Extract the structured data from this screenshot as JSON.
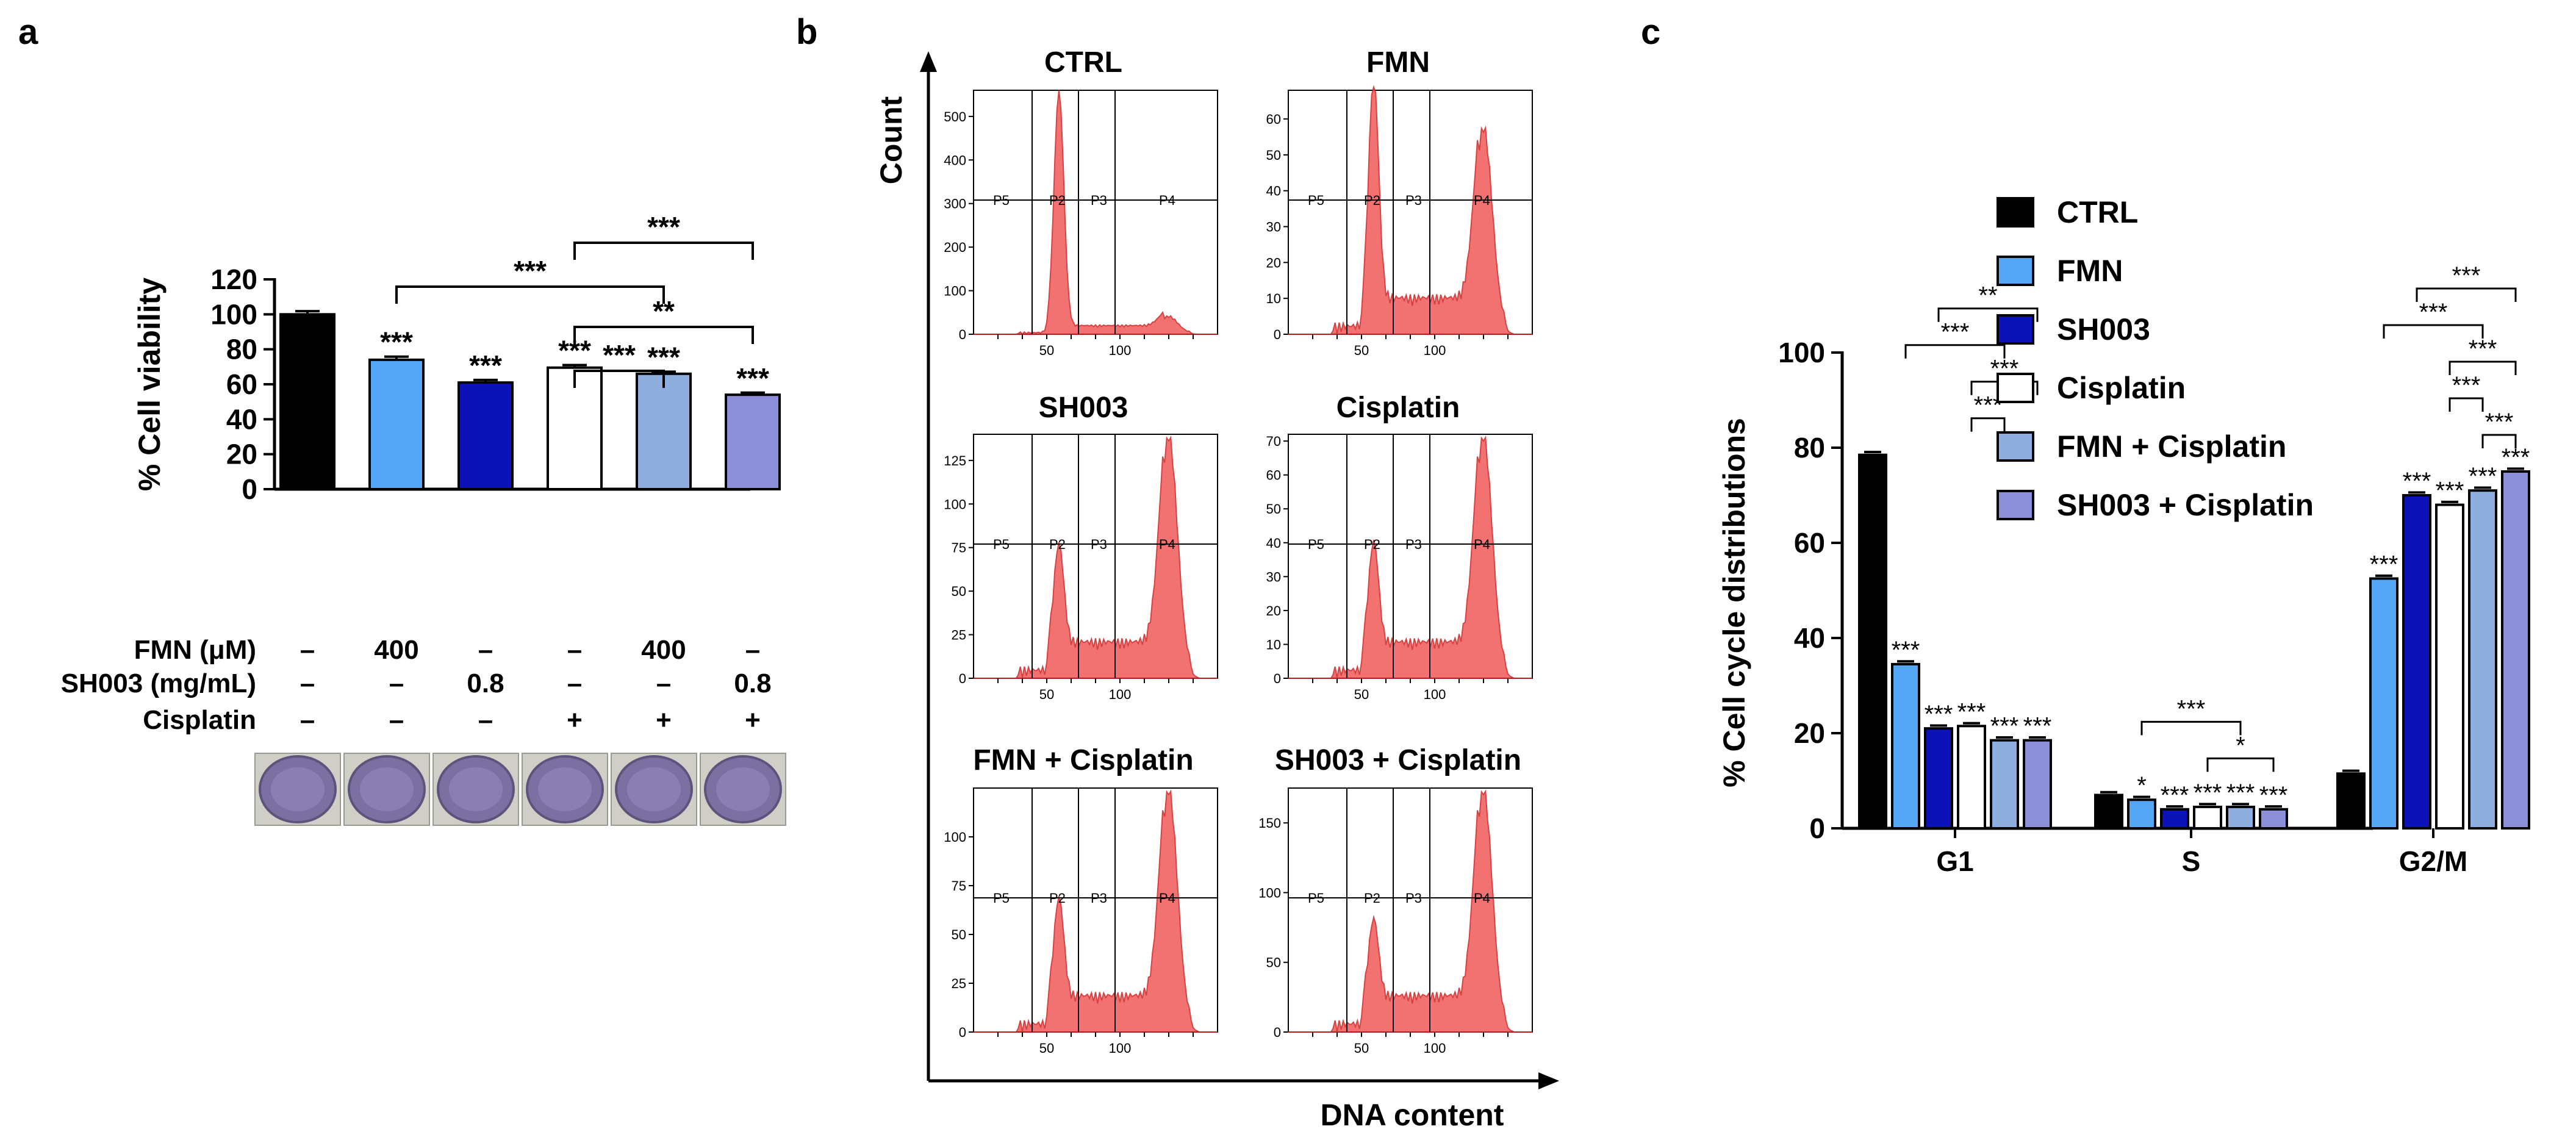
{
  "colors": {
    "CTRL": "#000000",
    "FMN": "#55a6f5",
    "SH003": "#0a12b8",
    "Cisplatin": "#ffffff",
    "FMN + Cisplatin": "#8eaee0",
    "SH003 + Cisplatin": "#8c8fd8",
    "histogram": "#f05a5a",
    "plate": "#6e5f9c"
  },
  "chart_data": [
    {
      "panel": "a",
      "type": "bar",
      "ylabel": "% Cell viability",
      "ylim": [
        0,
        120
      ],
      "yticks": [
        "0",
        "20",
        "40",
        "60",
        "80",
        "100",
        "120"
      ],
      "groups": [
        "CTRL",
        "FMN",
        "SH003",
        "Cisplatin",
        "FMN + Cisplatin",
        "SH003 + Cisplatin"
      ],
      "values": [
        100,
        74,
        61,
        69.5,
        66,
        54
      ],
      "errors": [
        1.8,
        1.8,
        1.5,
        1.5,
        1.2,
        1.2
      ],
      "bar_labels": [
        "",
        "***",
        "***",
        "***",
        "***",
        "***"
      ],
      "brackets": [
        {
          "from": 1,
          "to": 4,
          "label": "***",
          "level": 2
        },
        {
          "from": 3,
          "to": 5,
          "label": "***",
          "level": 3
        },
        {
          "from": 3,
          "to": 4,
          "label": "***",
          "level": 0
        },
        {
          "from": 3,
          "to": 5,
          "label": "**",
          "level": 1
        }
      ],
      "conditions": [
        {
          "label": "FMN (μM)",
          "values": [
            "–",
            "400",
            "–",
            "–",
            "400",
            "–"
          ]
        },
        {
          "label": "SH003 (mg/mL)",
          "values": [
            "–",
            "–",
            "0.8",
            "–",
            "–",
            "0.8"
          ]
        },
        {
          "label": "Cisplatin",
          "values": [
            "–",
            "–",
            "–",
            "+",
            "+",
            "+"
          ]
        }
      ]
    },
    {
      "panel": "b",
      "type": "area",
      "xlabel": "DNA content",
      "ylabel": "Count",
      "xticks": [
        "50",
        "100"
      ],
      "gates": [
        "P5",
        "P2",
        "P3",
        "P4"
      ],
      "histograms": [
        {
          "title": "CTRL",
          "yticks": [
            "0",
            "100",
            "200",
            "300",
            "400",
            "500"
          ],
          "ymax": 560,
          "g1": 1.0,
          "g2": 0.07
        },
        {
          "title": "FMN",
          "yticks": [
            "0",
            "10",
            "20",
            "30",
            "40",
            "50",
            "60"
          ],
          "ymax": 68,
          "g1": 0.95,
          "g2": 0.85
        },
        {
          "title": "SH003",
          "yticks": [
            "0",
            "25",
            "50",
            "75",
            "100",
            "125"
          ],
          "ymax": 140,
          "g1": 0.42,
          "g2": 1.0
        },
        {
          "title": "Cisplatin",
          "yticks": [
            "0",
            "10",
            "20",
            "30",
            "40",
            "50",
            "60",
            "70"
          ],
          "ymax": 72,
          "g1": 0.43,
          "g2": 1.0
        },
        {
          "title": "FMN + Cisplatin",
          "yticks": [
            "0",
            "25",
            "50",
            "75",
            "100"
          ],
          "ymax": 125,
          "g1": 0.42,
          "g2": 1.0
        },
        {
          "title": "SH003 + Cisplatin",
          "yticks": [
            "0",
            "50",
            "100",
            "150"
          ],
          "ymax": 175,
          "g1": 0.33,
          "g2": 1.0
        }
      ]
    },
    {
      "panel": "c",
      "type": "bar",
      "ylabel": "% Cell cycle distributions",
      "ylim": [
        0,
        100
      ],
      "yticks": [
        "0",
        "20",
        "40",
        "60",
        "80",
        "100"
      ],
      "categories": [
        "G1",
        "S",
        "G2/M"
      ],
      "legend": [
        "CTRL",
        "FMN",
        "SH003",
        "Cisplatin",
        "FMN + Cisplatin",
        "SH003 + Cisplatin"
      ],
      "series": [
        {
          "name": "CTRL",
          "values": [
            78.5,
            7,
            11.5
          ]
        },
        {
          "name": "FMN",
          "values": [
            34.5,
            6,
            52.5
          ]
        },
        {
          "name": "SH003",
          "values": [
            21,
            4,
            70
          ]
        },
        {
          "name": "Cisplatin",
          "values": [
            21.5,
            4.5,
            68
          ]
        },
        {
          "name": "FMN + Cisplatin",
          "values": [
            18.5,
            4.5,
            71
          ]
        },
        {
          "name": "SH003 + Cisplatin",
          "values": [
            18.5,
            4,
            75
          ]
        }
      ],
      "bar_labels": [
        [
          "",
          "***",
          "***",
          "***",
          "***",
          "***"
        ],
        [
          "",
          "*",
          "***",
          "***",
          "***",
          "***"
        ],
        [
          "",
          "***",
          "***",
          "***",
          "***",
          "***"
        ]
      ],
      "brackets": [
        {
          "cat": 0,
          "from": 1,
          "to": 4,
          "label": "***",
          "level": 2
        },
        {
          "cat": 0,
          "from": 2,
          "to": 5,
          "label": "**",
          "level": 3
        },
        {
          "cat": 0,
          "from": 3,
          "to": 5,
          "label": "***",
          "level": 1
        },
        {
          "cat": 0,
          "from": 3,
          "to": 4,
          "label": "***",
          "level": 0
        },
        {
          "cat": 1,
          "from": 1,
          "to": 4,
          "label": "***",
          "level": 1
        },
        {
          "cat": 1,
          "from": 3,
          "to": 5,
          "label": "*",
          "level": 0
        },
        {
          "cat": 2,
          "from": 1,
          "to": 4,
          "label": "***",
          "level": 3
        },
        {
          "cat": 2,
          "from": 2,
          "to": 5,
          "label": "***",
          "level": 4
        },
        {
          "cat": 2,
          "from": 3,
          "to": 5,
          "label": "***",
          "level": 2
        },
        {
          "cat": 2,
          "from": 3,
          "to": 4,
          "label": "***",
          "level": 1
        },
        {
          "cat": 2,
          "from": 4,
          "to": 5,
          "label": "***",
          "level": 0
        }
      ]
    }
  ],
  "panels": {
    "a": "a",
    "b": "b",
    "c": "c"
  }
}
